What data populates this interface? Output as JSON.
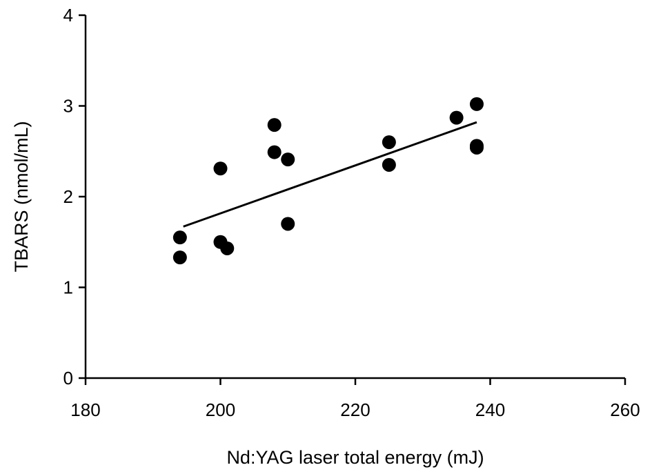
{
  "chart_data": {
    "type": "scatter",
    "title": "",
    "xlabel": "Nd:YAG laser total energy (mJ)",
    "ylabel": "TBARS (nmol/mL)",
    "xlim": [
      180,
      260
    ],
    "ylim": [
      0,
      4
    ],
    "x_ticks": [
      "180",
      "200",
      "220",
      "240",
      "260"
    ],
    "y_ticks": [
      "0",
      "1",
      "2",
      "3",
      "4"
    ],
    "grid": false,
    "legend": "none",
    "series": [
      {
        "x": [
          194,
          194,
          200,
          200,
          201,
          208,
          208,
          210,
          210,
          225,
          225,
          235,
          238,
          238,
          238
        ],
        "y": [
          1.55,
          1.33,
          2.31,
          1.5,
          1.43,
          2.79,
          2.49,
          2.41,
          1.7,
          2.6,
          2.35,
          2.87,
          3.02,
          2.56,
          2.54
        ],
        "color": "#000000",
        "marker": "filled-circle"
      }
    ],
    "trendline": {
      "type": "linear",
      "x": [
        194.5,
        238
      ],
      "y": [
        1.67,
        2.82
      ],
      "color": "#000000"
    }
  }
}
